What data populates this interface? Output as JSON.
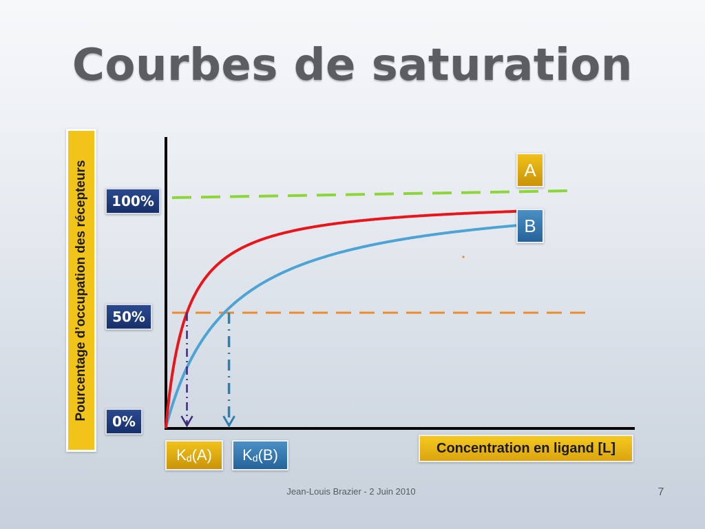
{
  "slide": {
    "title": "Courbes de saturation",
    "footer": "Jean-Louis Brazier - 2 Juin 2010",
    "page_number": "7"
  },
  "colors": {
    "curve_a": "#e8161b",
    "curve_b": "#4da3d4",
    "line_100": "#8cd63a",
    "line_50": "#ef8a2c",
    "kd_a_arrow": "#3c2a78",
    "kd_b_arrow": "#2f7fae"
  },
  "chart_data": {
    "type": "line",
    "title": "Courbes de saturation",
    "xlabel": "Concentration en ligand [L]",
    "ylabel": "Pourcentage d’occupation des récepteurs",
    "y_ticks": [
      "0%",
      "50%",
      "100%"
    ],
    "x_markers": [
      {
        "label": "K",
        "sub": "d",
        "suffix": "(A)",
        "x": 0.4
      },
      {
        "label": "K",
        "sub": "d",
        "suffix": "(B)",
        "x": 1.2
      }
    ],
    "reference_lines": [
      {
        "y": 100,
        "style": "dashed",
        "color": "#8cd63a"
      },
      {
        "y": 50,
        "style": "dashed",
        "color": "#ef8a2c"
      }
    ],
    "series": [
      {
        "name": "A",
        "kd": 0.4,
        "color": "#e8161b"
      },
      {
        "name": "B",
        "kd": 1.2,
        "color": "#4da3d4"
      }
    ],
    "xlim": [
      0,
      6.8
    ],
    "ylim": [
      0,
      100
    ],
    "grid": false
  }
}
